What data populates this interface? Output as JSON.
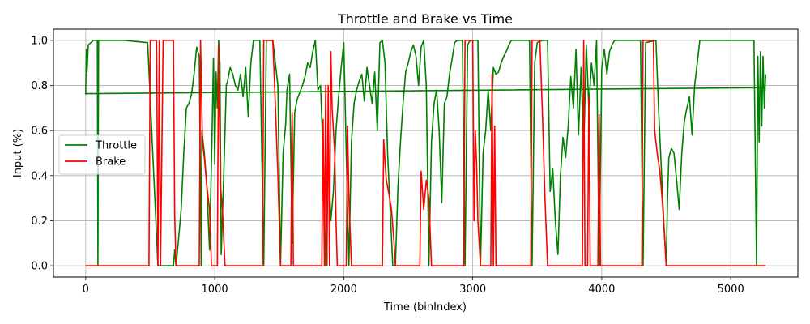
{
  "chart_data": {
    "type": "line",
    "title": "Throttle and Brake vs Time",
    "xlabel": "Time (binIndex)",
    "ylabel": "Input (%)",
    "xlim": [
      -250,
      5520
    ],
    "ylim": [
      -0.05,
      1.05
    ],
    "xticks": [
      0,
      1000,
      2000,
      3000,
      4000,
      5000
    ],
    "yticks": [
      0.0,
      0.2,
      0.4,
      0.6,
      0.8,
      1.0
    ],
    "grid": true,
    "legend_position": "center-left",
    "series": [
      {
        "name": "Throttle",
        "color": "#008000",
        "points": [
          [
            0,
            0.76
          ],
          [
            5,
            0.96
          ],
          [
            10,
            0.86
          ],
          [
            20,
            0.98
          ],
          [
            40,
            0.99
          ],
          [
            60,
            1.0
          ],
          [
            90,
            1.0
          ],
          [
            95,
            0.0
          ],
          [
            100,
            1.0
          ],
          [
            300,
            1.0
          ],
          [
            480,
            0.99
          ],
          [
            560,
            0.0
          ],
          [
            600,
            0.0
          ],
          [
            640,
            0.0
          ],
          [
            680,
            0.0
          ],
          [
            690,
            0.07
          ],
          [
            700,
            0.0
          ],
          [
            720,
            0.12
          ],
          [
            740,
            0.25
          ],
          [
            760,
            0.5
          ],
          [
            780,
            0.7
          ],
          [
            800,
            0.72
          ],
          [
            820,
            0.76
          ],
          [
            840,
            0.85
          ],
          [
            860,
            0.97
          ],
          [
            880,
            0.93
          ],
          [
            895,
            0.0
          ],
          [
            900,
            0.6
          ],
          [
            920,
            0.5
          ],
          [
            940,
            0.34
          ],
          [
            960,
            0.07
          ],
          [
            980,
            0.6
          ],
          [
            990,
            0.92
          ],
          [
            1000,
            0.45
          ],
          [
            1010,
            0.86
          ],
          [
            1020,
            0.7
          ],
          [
            1030,
            1.0
          ],
          [
            1040,
            0.9
          ],
          [
            1050,
            0.05
          ],
          [
            1070,
            0.4
          ],
          [
            1090,
            0.8
          ],
          [
            1100,
            0.82
          ],
          [
            1120,
            0.88
          ],
          [
            1140,
            0.85
          ],
          [
            1160,
            0.8
          ],
          [
            1180,
            0.78
          ],
          [
            1200,
            0.85
          ],
          [
            1220,
            0.75
          ],
          [
            1240,
            0.88
          ],
          [
            1260,
            0.66
          ],
          [
            1280,
            0.9
          ],
          [
            1300,
            1.0
          ],
          [
            1350,
            1.0
          ],
          [
            1380,
            0.0
          ],
          [
            1400,
            1.0
          ],
          [
            1450,
            1.0
          ],
          [
            1490,
            0.8
          ],
          [
            1510,
            0.0
          ],
          [
            1530,
            0.5
          ],
          [
            1550,
            0.63
          ],
          [
            1560,
            0.78
          ],
          [
            1580,
            0.85
          ],
          [
            1600,
            0.1
          ],
          [
            1620,
            0.68
          ],
          [
            1640,
            0.74
          ],
          [
            1660,
            0.77
          ],
          [
            1680,
            0.8
          ],
          [
            1700,
            0.84
          ],
          [
            1720,
            0.9
          ],
          [
            1740,
            0.88
          ],
          [
            1760,
            0.95
          ],
          [
            1780,
            1.0
          ],
          [
            1800,
            0.78
          ],
          [
            1820,
            0.8
          ],
          [
            1840,
            0.5
          ],
          [
            1860,
            0.0
          ],
          [
            1880,
            0.5
          ],
          [
            1900,
            0.2
          ],
          [
            1920,
            0.33
          ],
          [
            1940,
            0.6
          ],
          [
            1960,
            0.75
          ],
          [
            1980,
            0.88
          ],
          [
            2000,
            0.99
          ],
          [
            2020,
            0.5
          ],
          [
            2040,
            0.0
          ],
          [
            2060,
            0.55
          ],
          [
            2080,
            0.72
          ],
          [
            2100,
            0.78
          ],
          [
            2120,
            0.82
          ],
          [
            2140,
            0.85
          ],
          [
            2160,
            0.73
          ],
          [
            2180,
            0.88
          ],
          [
            2200,
            0.8
          ],
          [
            2220,
            0.72
          ],
          [
            2240,
            0.86
          ],
          [
            2260,
            0.6
          ],
          [
            2280,
            0.99
          ],
          [
            2300,
            1.0
          ],
          [
            2320,
            0.9
          ],
          [
            2340,
            0.5
          ],
          [
            2360,
            0.25
          ],
          [
            2380,
            0.0
          ],
          [
            2400,
            0.0
          ],
          [
            2420,
            0.35
          ],
          [
            2440,
            0.55
          ],
          [
            2460,
            0.72
          ],
          [
            2480,
            0.86
          ],
          [
            2500,
            0.9
          ],
          [
            2520,
            0.95
          ],
          [
            2540,
            0.98
          ],
          [
            2560,
            0.93
          ],
          [
            2580,
            0.8
          ],
          [
            2600,
            0.97
          ],
          [
            2620,
            1.0
          ],
          [
            2640,
            0.8
          ],
          [
            2660,
            0.0
          ],
          [
            2680,
            0.55
          ],
          [
            2700,
            0.72
          ],
          [
            2720,
            0.78
          ],
          [
            2740,
            0.6
          ],
          [
            2760,
            0.28
          ],
          [
            2780,
            0.72
          ],
          [
            2800,
            0.75
          ],
          [
            2820,
            0.85
          ],
          [
            2840,
            0.92
          ],
          [
            2860,
            0.99
          ],
          [
            2880,
            1.0
          ],
          [
            2920,
            1.0
          ],
          [
            2940,
            0.0
          ],
          [
            2960,
            0.98
          ],
          [
            2980,
            1.0
          ],
          [
            3040,
            1.0
          ],
          [
            3060,
            0.0
          ],
          [
            3080,
            0.5
          ],
          [
            3100,
            0.6
          ],
          [
            3120,
            0.78
          ],
          [
            3140,
            0.6
          ],
          [
            3160,
            0.88
          ],
          [
            3180,
            0.85
          ],
          [
            3200,
            0.86
          ],
          [
            3220,
            0.9
          ],
          [
            3240,
            0.93
          ],
          [
            3260,
            0.95
          ],
          [
            3280,
            0.98
          ],
          [
            3300,
            1.0
          ],
          [
            3360,
            1.0
          ],
          [
            3440,
            1.0
          ],
          [
            3460,
            0.0
          ],
          [
            3480,
            0.9
          ],
          [
            3500,
            0.99
          ],
          [
            3540,
            1.0
          ],
          [
            3580,
            1.0
          ],
          [
            3600,
            0.33
          ],
          [
            3620,
            0.43
          ],
          [
            3640,
            0.2
          ],
          [
            3660,
            0.05
          ],
          [
            3680,
            0.4
          ],
          [
            3700,
            0.57
          ],
          [
            3720,
            0.48
          ],
          [
            3740,
            0.62
          ],
          [
            3760,
            0.84
          ],
          [
            3780,
            0.7
          ],
          [
            3800,
            0.96
          ],
          [
            3820,
            0.58
          ],
          [
            3840,
            0.88
          ],
          [
            3860,
            0.5
          ],
          [
            3880,
            0.98
          ],
          [
            3900,
            0.7
          ],
          [
            3920,
            0.9
          ],
          [
            3940,
            0.8
          ],
          [
            3960,
            1.0
          ],
          [
            3980,
            0.0
          ],
          [
            4000,
            0.88
          ],
          [
            4020,
            0.96
          ],
          [
            4040,
            0.85
          ],
          [
            4060,
            0.95
          ],
          [
            4080,
            0.98
          ],
          [
            4100,
            1.0
          ],
          [
            4200,
            1.0
          ],
          [
            4300,
            1.0
          ],
          [
            4320,
            0.0
          ],
          [
            4340,
            0.99
          ],
          [
            4420,
            1.0
          ],
          [
            4440,
            0.7
          ],
          [
            4460,
            0.45
          ],
          [
            4480,
            0.2
          ],
          [
            4500,
            0.0
          ],
          [
            4510,
            0.3
          ],
          [
            4520,
            0.48
          ],
          [
            4540,
            0.52
          ],
          [
            4560,
            0.5
          ],
          [
            4580,
            0.38
          ],
          [
            4600,
            0.25
          ],
          [
            4620,
            0.5
          ],
          [
            4640,
            0.64
          ],
          [
            4660,
            0.7
          ],
          [
            4680,
            0.75
          ],
          [
            4700,
            0.58
          ],
          [
            4720,
            0.8
          ],
          [
            4740,
            0.9
          ],
          [
            4760,
            1.0
          ],
          [
            4800,
            1.0
          ],
          [
            4900,
            1.0
          ],
          [
            5000,
            1.0
          ],
          [
            5100,
            1.0
          ],
          [
            5180,
            1.0
          ],
          [
            5200,
            0.0
          ],
          [
            5210,
            0.93
          ],
          [
            5220,
            0.55
          ],
          [
            5230,
            0.95
          ],
          [
            5240,
            0.62
          ],
          [
            5250,
            0.93
          ],
          [
            5260,
            0.7
          ],
          [
            5270,
            0.85
          ]
        ]
      },
      {
        "name": "Brake",
        "color": "#ff0000",
        "points": [
          [
            0,
            0.0
          ],
          [
            490,
            0.0
          ],
          [
            500,
            1.0
          ],
          [
            550,
            1.0
          ],
          [
            560,
            0.0
          ],
          [
            570,
            1.0
          ],
          [
            580,
            0.0
          ],
          [
            600,
            1.0
          ],
          [
            650,
            1.0
          ],
          [
            680,
            1.0
          ],
          [
            690,
            0.22
          ],
          [
            700,
            0.0
          ],
          [
            880,
            0.0
          ],
          [
            890,
            1.0
          ],
          [
            905,
            0.55
          ],
          [
            920,
            0.48
          ],
          [
            940,
            0.35
          ],
          [
            960,
            0.25
          ],
          [
            975,
            0.0
          ],
          [
            1020,
            0.0
          ],
          [
            1030,
            0.98
          ],
          [
            1045,
            0.35
          ],
          [
            1060,
            0.25
          ],
          [
            1080,
            0.0
          ],
          [
            1370,
            0.0
          ],
          [
            1380,
            1.0
          ],
          [
            1450,
            1.0
          ],
          [
            1470,
            0.72
          ],
          [
            1490,
            0.4
          ],
          [
            1510,
            0.0
          ],
          [
            1590,
            0.0
          ],
          [
            1600,
            0.68
          ],
          [
            1610,
            0.0
          ],
          [
            1830,
            0.0
          ],
          [
            1840,
            0.65
          ],
          [
            1850,
            0.0
          ],
          [
            1860,
            0.8
          ],
          [
            1870,
            0.0
          ],
          [
            1880,
            0.8
          ],
          [
            1890,
            0.0
          ],
          [
            1900,
            0.95
          ],
          [
            1910,
            0.7
          ],
          [
            1930,
            0.5
          ],
          [
            1940,
            0.2
          ],
          [
            1950,
            0.0
          ],
          [
            2020,
            0.0
          ],
          [
            2030,
            0.62
          ],
          [
            2040,
            0.3
          ],
          [
            2060,
            0.0
          ],
          [
            2300,
            0.0
          ],
          [
            2310,
            0.56
          ],
          [
            2330,
            0.38
          ],
          [
            2350,
            0.32
          ],
          [
            2370,
            0.25
          ],
          [
            2390,
            0.1
          ],
          [
            2400,
            0.0
          ],
          [
            2590,
            0.0
          ],
          [
            2600,
            0.42
          ],
          [
            2620,
            0.25
          ],
          [
            2640,
            0.38
          ],
          [
            2660,
            0.3
          ],
          [
            2680,
            0.0
          ],
          [
            2930,
            0.0
          ],
          [
            2940,
            1.0
          ],
          [
            3000,
            1.0
          ],
          [
            3010,
            0.2
          ],
          [
            3020,
            0.6
          ],
          [
            3030,
            0.45
          ],
          [
            3040,
            0.2
          ],
          [
            3060,
            0.0
          ],
          [
            3140,
            0.0
          ],
          [
            3150,
            0.85
          ],
          [
            3160,
            0.0
          ],
          [
            3170,
            0.62
          ],
          [
            3180,
            0.0
          ],
          [
            3450,
            0.0
          ],
          [
            3460,
            1.0
          ],
          [
            3520,
            1.0
          ],
          [
            3540,
            0.68
          ],
          [
            3560,
            0.3
          ],
          [
            3580,
            0.0
          ],
          [
            3850,
            0.0
          ],
          [
            3860,
            1.0
          ],
          [
            3870,
            0.0
          ],
          [
            3890,
            0.0
          ],
          [
            3900,
            0.75
          ],
          [
            3910,
            0.0
          ],
          [
            3970,
            0.0
          ],
          [
            3980,
            0.67
          ],
          [
            3990,
            0.0
          ],
          [
            4310,
            0.0
          ],
          [
            4320,
            1.0
          ],
          [
            4400,
            1.0
          ],
          [
            4410,
            0.6
          ],
          [
            4430,
            0.5
          ],
          [
            4450,
            0.42
          ],
          [
            4470,
            0.28
          ],
          [
            4490,
            0.1
          ],
          [
            4500,
            0.0
          ],
          [
            5270,
            0.0
          ]
        ]
      },
      {
        "name": "",
        "color": "#008000",
        "points": [
          [
            0,
            0.764
          ],
          [
            5200,
            0.79
          ],
          [
            5270,
            0.79
          ]
        ]
      }
    ]
  }
}
